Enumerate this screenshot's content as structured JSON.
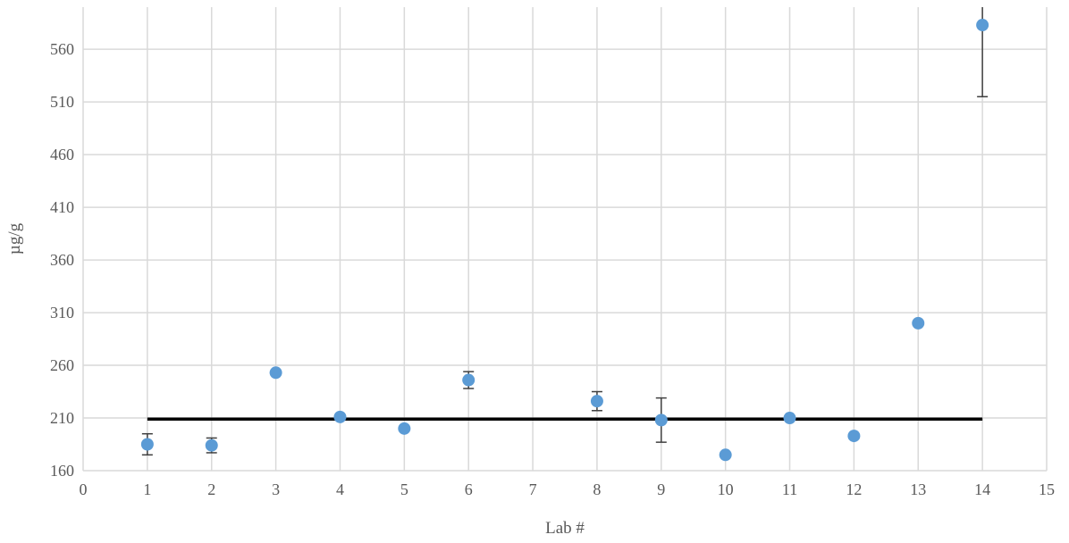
{
  "chart_data": {
    "type": "scatter",
    "title": "",
    "xlabel": "Lab #",
    "ylabel": "µg/g",
    "xlim": [
      0,
      15
    ],
    "ylim": [
      160,
      600
    ],
    "x_ticks": [
      0,
      1,
      2,
      3,
      4,
      5,
      6,
      7,
      8,
      9,
      10,
      11,
      12,
      13,
      14,
      15
    ],
    "y_ticks": [
      160,
      210,
      260,
      310,
      360,
      410,
      460,
      510,
      560
    ],
    "grid": true,
    "colors": {
      "points": "#5b9bd5",
      "reference_line": "#000000",
      "error_bars": "#404040",
      "grid": "#d9d9d9"
    },
    "series": [
      {
        "points": [
          {
            "x": 1,
            "y": 185,
            "err": 10
          },
          {
            "x": 2,
            "y": 184,
            "err": 7
          },
          {
            "x": 3,
            "y": 253,
            "err": 2
          },
          {
            "x": 4,
            "y": 211,
            "err": 0
          },
          {
            "x": 5,
            "y": 200,
            "err": 0
          },
          {
            "x": 6,
            "y": 246,
            "err": 8
          },
          {
            "x": 8,
            "y": 226,
            "err": 9
          },
          {
            "x": 9,
            "y": 208,
            "err": 21
          },
          {
            "x": 10,
            "y": 175,
            "err": 0
          },
          {
            "x": 11,
            "y": 210,
            "err": 0
          },
          {
            "x": 12,
            "y": 193,
            "err": 0
          },
          {
            "x": 13,
            "y": 300,
            "err": 0
          },
          {
            "x": 14,
            "y": 583,
            "err": 68
          }
        ]
      }
    ],
    "reference_line": {
      "x_start": 1,
      "x_end": 14,
      "y": 209
    }
  }
}
